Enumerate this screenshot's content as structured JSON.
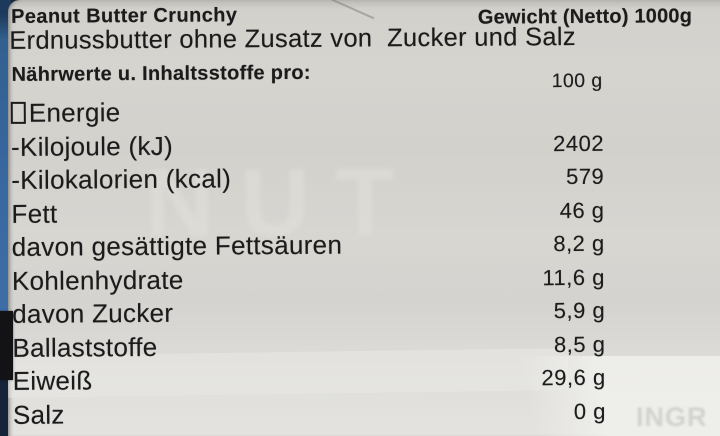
{
  "header": {
    "product_name": "Peanut Butter Crunchy",
    "net_weight": "Gewicht (Netto) 1000g",
    "subtitle": "Erdnussbutter ohne Zusatz von  Zucker und Salz",
    "per_label": "Nährwerte u. Inhaltsstoffe pro:",
    "per_amount": "100 g"
  },
  "nutrition": {
    "rows": [
      {
        "label": "Energie",
        "value": "",
        "box_glyph": true
      },
      {
        "label": "-Kilojoule (kJ)",
        "value": "2402",
        "box_glyph": false
      },
      {
        "label": "-Kilokalorien (kcal)",
        "value": "579",
        "box_glyph": false
      },
      {
        "label": "Fett",
        "value": "46 g",
        "box_glyph": false
      },
      {
        "label": "davon gesättigte Fettsäuren",
        "value": "8,2 g",
        "box_glyph": false
      },
      {
        "label": "Kohlenhydrate",
        "value": "11,6 g",
        "box_glyph": false
      },
      {
        "label": "davon Zucker",
        "value": "5,9 g",
        "box_glyph": false
      },
      {
        "label": "Ballaststoffe",
        "value": "8,5 g",
        "box_glyph": false
      },
      {
        "label": "Eiweiß",
        "value": "29,6 g",
        "box_glyph": false
      },
      {
        "label": "Salz",
        "value": "0 g",
        "box_glyph": false
      }
    ]
  },
  "watermarks": {
    "ghost_text": "NUT",
    "corner_text": "INGR"
  },
  "colors": {
    "paper": "#d6d4cf",
    "text": "#1b1b1b",
    "stripe_blue": "#33608f",
    "stripe_navy": "#1d3a5c",
    "stripe_black": "#131316"
  }
}
